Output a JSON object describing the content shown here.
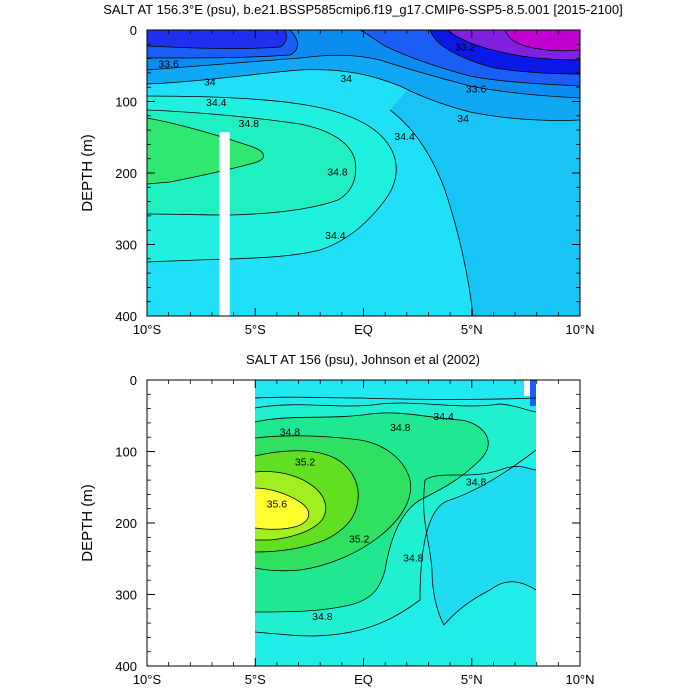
{
  "chart_data": [
    {
      "type": "contour",
      "title": "SALT AT 156.3°E (psu), b.e21.BSSP585cmip6.f19_g17.CMIP6-SSP5-8.5.001 [2015-2100]",
      "ylabel": "DEPTH (m)",
      "xlim": [
        -10,
        10
      ],
      "ylim": [
        400,
        0
      ],
      "xticks": [
        {
          "value": -10,
          "label": "10°S"
        },
        {
          "value": -5,
          "label": "5°S"
        },
        {
          "value": 0,
          "label": "EQ"
        },
        {
          "value": 5,
          "label": "5°N"
        },
        {
          "value": 10,
          "label": "10°N"
        }
      ],
      "yticks": [
        0,
        100,
        200,
        300,
        400
      ],
      "fill_levels": [
        {
          "min": 33.0,
          "max": 33.2,
          "color": "#c000d0"
        },
        {
          "min": 33.2,
          "max": 33.4,
          "color": "#8020e0"
        },
        {
          "min": 33.4,
          "max": 33.6,
          "color": "#2030f0"
        },
        {
          "min": 33.6,
          "max": 33.8,
          "color": "#1a5ef5"
        },
        {
          "min": 33.8,
          "max": 34.0,
          "color": "#0a8cf0"
        },
        {
          "min": 34.0,
          "max": 34.2,
          "color": "#10a8f5"
        },
        {
          "min": 34.2,
          "max": 34.4,
          "color": "#18c4f5"
        },
        {
          "min": 34.4,
          "max": 34.6,
          "color": "#20e0f8"
        },
        {
          "min": 34.6,
          "max": 34.8,
          "color": "#20f0e0"
        },
        {
          "min": 34.8,
          "max": 35.0,
          "color": "#20f0c0"
        },
        {
          "min": 35.0,
          "max": 35.2,
          "color": "#30e870"
        }
      ],
      "contour_labels": [
        {
          "x": -9.0,
          "y": 47,
          "text": "33.6"
        },
        {
          "x": -7.1,
          "y": 72,
          "text": "34"
        },
        {
          "x": -0.8,
          "y": 67,
          "text": "34"
        },
        {
          "x": -6.8,
          "y": 101,
          "text": "34.4"
        },
        {
          "x": -5.3,
          "y": 130,
          "text": "34.8"
        },
        {
          "x": 1.9,
          "y": 148,
          "text": "34.4"
        },
        {
          "x": -1.2,
          "y": 198,
          "text": "34.8"
        },
        {
          "x": -1.3,
          "y": 287,
          "text": "34.4"
        },
        {
          "x": 4.7,
          "y": 23,
          "text": "33.2"
        },
        {
          "x": 5.2,
          "y": 82,
          "text": "33.6"
        },
        {
          "x": 4.6,
          "y": 123,
          "text": "34"
        }
      ],
      "missing_data_columns": [
        {
          "x_from": -6.65,
          "x_to": -6.18,
          "depth_from": 143,
          "depth_to": 400
        }
      ]
    },
    {
      "type": "contour",
      "title": "SALT AT 156 (psu), Johnson et al (2002)",
      "ylabel": "DEPTH (m)",
      "xlim": [
        -10,
        10
      ],
      "ylim": [
        400,
        0
      ],
      "data_x_range": [
        -5,
        8
      ],
      "xticks": [
        {
          "value": -10,
          "label": "10°S"
        },
        {
          "value": -5,
          "label": "5°S"
        },
        {
          "value": 0,
          "label": "EQ"
        },
        {
          "value": 5,
          "label": "5°N"
        },
        {
          "value": 10,
          "label": "10°N"
        }
      ],
      "yticks": [
        0,
        100,
        200,
        300,
        400
      ],
      "fill_levels": [
        {
          "min": 34.2,
          "max": 34.4,
          "color": "#20dcf0"
        },
        {
          "min": 34.4,
          "max": 34.6,
          "color": "#20ece8"
        },
        {
          "min": 34.6,
          "max": 34.8,
          "color": "#20f0d0"
        },
        {
          "min": 34.8,
          "max": 35.0,
          "color": "#20e890"
        },
        {
          "min": 35.0,
          "max": 35.2,
          "color": "#30e060"
        },
        {
          "min": 35.2,
          "max": 35.4,
          "color": "#60e020"
        },
        {
          "min": 35.4,
          "max": 35.6,
          "color": "#a0f020"
        },
        {
          "min": 35.6,
          "max": 35.8,
          "color": "#ffff30"
        }
      ],
      "contour_labels": [
        {
          "x": 3.7,
          "y": 50,
          "text": "34.4"
        },
        {
          "x": -3.4,
          "y": 72,
          "text": "34.8"
        },
        {
          "x": 1.7,
          "y": 66,
          "text": "34.8"
        },
        {
          "x": -2.7,
          "y": 114,
          "text": "35.2"
        },
        {
          "x": 5.2,
          "y": 142,
          "text": "34.8"
        },
        {
          "x": -4.0,
          "y": 173,
          "text": "35.6"
        },
        {
          "x": -0.2,
          "y": 222,
          "text": "35.2"
        },
        {
          "x": 2.3,
          "y": 248,
          "text": "34.8"
        },
        {
          "x": -1.9,
          "y": 330,
          "text": "34.8"
        }
      ]
    }
  ]
}
